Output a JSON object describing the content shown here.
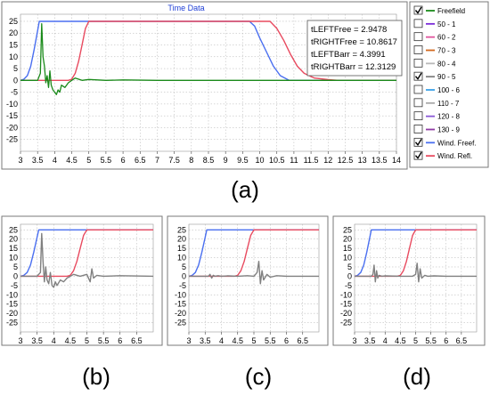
{
  "chart_data": [
    {
      "id": "a",
      "type": "line",
      "title": "Time Data",
      "caption": "(a)",
      "xlim": [
        3,
        14
      ],
      "ylim": [
        -30,
        28
      ],
      "xticks": [
        "3",
        "3.5",
        "4",
        "4.5",
        "5",
        "5.5",
        "6",
        "6.5",
        "7",
        "7.5",
        "8",
        "8.5",
        "9",
        "9.5",
        "10",
        "10.5",
        "11",
        "11.5",
        "12",
        "12.5",
        "13",
        "13.5",
        "14"
      ],
      "yticks": [
        "25",
        "20",
        "15",
        "10",
        "5",
        "0",
        "-5",
        "-10",
        "-15",
        "-20",
        "-25"
      ],
      "grid": true,
      "annotations": [
        "tLEFTFree = 2.9478",
        "tRIGHTFree = 10.8617",
        "tLEFTBarr = 4.3991",
        "tRIGHTBarr = 12.3129"
      ],
      "series": [
        {
          "name": "Wind. Freef.",
          "color": "#4a6ff0",
          "x": [
            3.0,
            3.1,
            3.2,
            3.3,
            3.4,
            3.5,
            3.55,
            9.7,
            9.85,
            10.0,
            10.2,
            10.4,
            10.6,
            10.86,
            11.0,
            14.0
          ],
          "y": [
            0,
            0.5,
            2,
            6,
            13,
            21,
            25,
            25,
            23,
            18,
            12,
            6,
            2,
            0,
            0,
            0
          ]
        },
        {
          "name": "Wind. Refl.",
          "color": "#e84a5f",
          "x": [
            3.0,
            4.4,
            4.5,
            4.6,
            4.7,
            4.8,
            4.9,
            5.0,
            10.3,
            10.5,
            10.7,
            10.9,
            11.1,
            11.3,
            11.6,
            12.0,
            12.3,
            14.0
          ],
          "y": [
            0,
            0,
            0.5,
            3,
            8,
            15,
            22,
            25,
            25,
            22,
            17,
            11,
            6,
            3,
            1,
            0.3,
            0,
            0
          ]
        },
        {
          "name": "Freefield",
          "color": "#1a8a1a",
          "x": [
            3.0,
            3.5,
            3.58,
            3.62,
            3.66,
            3.7,
            3.74,
            3.78,
            3.82,
            3.86,
            3.9,
            3.95,
            4.0,
            4.05,
            4.1,
            4.15,
            4.2,
            4.3,
            4.4,
            4.5,
            4.6,
            4.8,
            5.0,
            5.5,
            6.0,
            7.0,
            14.0
          ],
          "y": [
            0,
            0,
            3,
            24,
            10,
            6,
            -1,
            2,
            -3,
            4,
            -2,
            -4,
            -5,
            -6,
            -4,
            -5,
            -2,
            -3,
            -1,
            0,
            1,
            0,
            0.4,
            0,
            0.2,
            0,
            0
          ]
        }
      ],
      "legend": {
        "placement": "right",
        "items": [
          {
            "label": "Freefield",
            "checked": true,
            "color": "#1a8a1a"
          },
          {
            "label": "50 - 1",
            "checked": false,
            "color": "#7b2bd9"
          },
          {
            "label": "60 - 2",
            "checked": false,
            "color": "#e0559d"
          },
          {
            "label": "70 - 3",
            "checked": false,
            "color": "#d2691e"
          },
          {
            "label": "80 - 4",
            "checked": false,
            "color": "#b8b8b8"
          },
          {
            "label": "90 - 5",
            "checked": true,
            "color": "#808080"
          },
          {
            "label": "100 - 6",
            "checked": false,
            "color": "#3aa0e8"
          },
          {
            "label": "110 - 7",
            "checked": false,
            "color": "#aaaaaa"
          },
          {
            "label": "120 - 8",
            "checked": false,
            "color": "#8a58d6"
          },
          {
            "label": "130 - 9",
            "checked": false,
            "color": "#8e3aa4"
          },
          {
            "label": "Wind. Freef.",
            "checked": true,
            "color": "#4a6ff0"
          },
          {
            "label": "Wind. Refl.",
            "checked": true,
            "color": "#e84a5f"
          }
        ]
      }
    },
    {
      "id": "b",
      "type": "line",
      "caption": "(b)",
      "xlim": [
        3,
        7
      ],
      "ylim": [
        -30,
        28
      ],
      "xticks": [
        "3",
        "3.5",
        "4",
        "4.5",
        "5",
        "5.5",
        "6",
        "6.5"
      ],
      "yticks": [
        "25",
        "20",
        "15",
        "10",
        "5",
        "0",
        "-5",
        "-10",
        "-15",
        "-20",
        "-25"
      ],
      "grid": true,
      "series": [
        {
          "name": "Wind. Freef.",
          "color": "#4a6ff0",
          "x": [
            3.0,
            3.1,
            3.2,
            3.3,
            3.4,
            3.5,
            3.55,
            7.0
          ],
          "y": [
            0,
            0.5,
            2,
            6,
            13,
            21,
            25,
            25
          ]
        },
        {
          "name": "Wind. Refl.",
          "color": "#e84a5f",
          "x": [
            3.0,
            4.4,
            4.5,
            4.6,
            4.7,
            4.8,
            4.9,
            5.0,
            7.0
          ],
          "y": [
            0,
            0,
            0.5,
            3,
            8,
            15,
            22,
            25,
            25
          ]
        },
        {
          "name": "90 - 5",
          "color": "#808080",
          "x": [
            3.0,
            3.5,
            3.6,
            3.64,
            3.68,
            3.72,
            3.76,
            3.8,
            3.85,
            3.9,
            3.95,
            4.0,
            4.05,
            4.1,
            4.2,
            4.3,
            4.4,
            4.6,
            4.8,
            5.0,
            5.1,
            5.15,
            5.2,
            5.3,
            5.5,
            6.0,
            7.0
          ],
          "y": [
            0,
            0,
            2,
            23,
            8,
            -3,
            5,
            -2,
            -4,
            2,
            -5,
            -6,
            -3,
            -5,
            -2,
            -3,
            -1,
            1,
            0,
            1,
            -3,
            4,
            -1,
            0.5,
            0,
            0.3,
            0
          ]
        }
      ]
    },
    {
      "id": "c",
      "type": "line",
      "caption": "(c)",
      "xlim": [
        3,
        7
      ],
      "ylim": [
        -30,
        28
      ],
      "xticks": [
        "3",
        "3.5",
        "4",
        "4.5",
        "5",
        "5.5",
        "6",
        "6.5"
      ],
      "yticks": [
        "25",
        "20",
        "15",
        "10",
        "5",
        "0",
        "-5",
        "-10",
        "-15",
        "-20",
        "-25"
      ],
      "grid": true,
      "series": [
        {
          "name": "Wind. Freef.",
          "color": "#4a6ff0",
          "x": [
            3.0,
            3.1,
            3.2,
            3.3,
            3.4,
            3.5,
            3.55,
            7.0
          ],
          "y": [
            0,
            0.5,
            2,
            6,
            13,
            21,
            25,
            25
          ]
        },
        {
          "name": "Wind. Refl.",
          "color": "#e84a5f",
          "x": [
            3.0,
            4.4,
            4.5,
            4.6,
            4.7,
            4.8,
            4.9,
            5.0,
            7.0
          ],
          "y": [
            0,
            0,
            0.5,
            3,
            8,
            15,
            22,
            25,
            25
          ]
        },
        {
          "name": "90 - 5",
          "color": "#808080",
          "x": [
            3.0,
            3.6,
            3.65,
            3.7,
            3.75,
            3.8,
            3.9,
            4.0,
            4.2,
            4.5,
            4.8,
            5.0,
            5.1,
            5.15,
            5.2,
            5.25,
            5.3,
            5.4,
            5.5,
            5.7,
            6.0,
            7.0
          ],
          "y": [
            0,
            0,
            1,
            -1,
            0.5,
            0,
            0.3,
            0,
            0.2,
            0,
            0.3,
            0,
            2,
            8,
            -4,
            3,
            -2,
            1,
            -0.5,
            0.3,
            0,
            0
          ]
        }
      ]
    },
    {
      "id": "d",
      "type": "line",
      "caption": "(d)",
      "xlim": [
        3,
        7
      ],
      "ylim": [
        -30,
        28
      ],
      "xticks": [
        "3",
        "3.5",
        "4",
        "4.5",
        "5",
        "5.5",
        "6",
        "6.5"
      ],
      "yticks": [
        "25",
        "20",
        "15",
        "10",
        "5",
        "0",
        "-5",
        "-10",
        "-15",
        "-20",
        "-25"
      ],
      "grid": true,
      "series": [
        {
          "name": "Wind. Freef.",
          "color": "#4a6ff0",
          "x": [
            3.0,
            3.1,
            3.2,
            3.3,
            3.4,
            3.5,
            3.55,
            7.0
          ],
          "y": [
            0,
            0.5,
            2,
            6,
            13,
            21,
            25,
            25
          ]
        },
        {
          "name": "Wind. Refl.",
          "color": "#e84a5f",
          "x": [
            3.0,
            4.4,
            4.5,
            4.6,
            4.7,
            4.8,
            4.9,
            5.0,
            7.0
          ],
          "y": [
            0,
            0,
            0.5,
            3,
            8,
            15,
            22,
            25,
            25
          ]
        },
        {
          "name": "90 - 5",
          "color": "#808080",
          "x": [
            3.0,
            3.55,
            3.6,
            3.64,
            3.68,
            3.72,
            3.76,
            3.8,
            3.9,
            4.0,
            4.5,
            4.9,
            5.0,
            5.05,
            5.1,
            5.15,
            5.2,
            5.3,
            5.4,
            5.6,
            6.0,
            7.0
          ],
          "y": [
            0,
            0,
            1,
            6,
            -3,
            3,
            -1,
            0.5,
            0,
            0.2,
            0,
            0,
            1,
            7,
            -3,
            4,
            -1,
            0.5,
            0,
            0.2,
            0,
            0
          ]
        }
      ]
    }
  ]
}
